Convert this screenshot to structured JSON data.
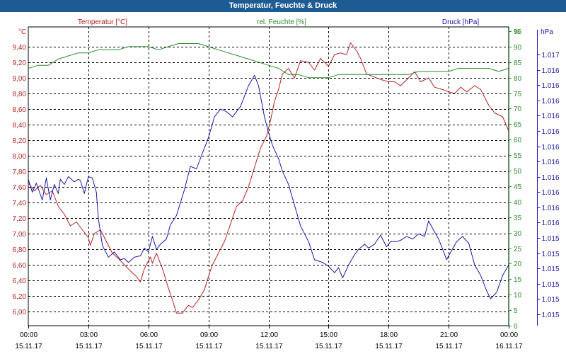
{
  "window": {
    "title": "Temperatur, Feuchte & Druck"
  },
  "colors": {
    "temperature": "#b22222",
    "humidity": "#2e8b2e",
    "pressure": "#1a1aa6",
    "titlebar": "#1f5b93"
  },
  "chart_data": {
    "type": "line",
    "title": "Temperatur, Feuchte & Druck",
    "grid": true,
    "x": {
      "range": [
        0,
        24
      ],
      "tick_hours": [
        0,
        3,
        6,
        9,
        12,
        15,
        18,
        21,
        24
      ],
      "tick_times": [
        "00:00",
        "03:00",
        "06:00",
        "09:00",
        "12:00",
        "15:00",
        "18:00",
        "21:00",
        "00:00"
      ],
      "tick_dates": [
        "15.11.17",
        "15.11.17",
        "15.11.17",
        "15.11.17",
        "15.11.17",
        "15.11.17",
        "15.11.17",
        "15.11.17",
        "16.11.17"
      ]
    },
    "axes": {
      "temperature": {
        "label": "Temperatur [°C]",
        "unit": "°C",
        "range": [
          5.8,
          9.6
        ],
        "ticks": [
          "6,00",
          "6,20",
          "6,40",
          "6,60",
          "6,80",
          "7,00",
          "7,20",
          "7,40",
          "7,60",
          "7,80",
          "8,00",
          "8,20",
          "8,40",
          "8,60",
          "8,80",
          "9,00",
          "9,20",
          "9,40"
        ]
      },
      "humidity": {
        "label": "rel. Feuchte [%]",
        "unit": "%",
        "range": [
          0,
          95
        ],
        "ticks": [
          "0",
          "5",
          "10",
          "15",
          "20",
          "25",
          "30",
          "35",
          "40",
          "45",
          "50",
          "55",
          "60",
          "65",
          "70",
          "75",
          "80",
          "85",
          "90",
          "95"
        ]
      },
      "pressure": {
        "label": "Druck [hPa]",
        "unit": "hPa",
        "range": [
          0,
          1
        ],
        "ticks": [
          "1.015",
          "1.015",
          "1.015",
          "1.015",
          "1.015",
          "1.015",
          "1.016",
          "1.016",
          "1.016",
          "1.016",
          "1.016",
          "1.016",
          "1.016",
          "1.016",
          "1.016",
          "1.016",
          "1.016",
          "1.017"
        ],
        "tick_fractions": [
          0.0,
          0.0588,
          0.1176,
          0.1765,
          0.2353,
          0.2941,
          0.3529,
          0.4118,
          0.4706,
          0.5294,
          0.5882,
          0.6471,
          0.7059,
          0.7647,
          0.8235,
          0.8824,
          0.9412,
          1.0
        ]
      }
    },
    "series": [
      {
        "name": "Temperatur [°C]",
        "axis": "temperature",
        "points": [
          [
            0,
            7.65
          ],
          [
            0.3,
            7.55
          ],
          [
            0.6,
            7.62
          ],
          [
            0.9,
            7.5
          ],
          [
            1.2,
            7.55
          ],
          [
            1.5,
            7.35
          ],
          [
            1.8,
            7.25
          ],
          [
            2.1,
            7.1
          ],
          [
            2.4,
            7.15
          ],
          [
            2.7,
            7.05
          ],
          [
            3.0,
            6.95
          ],
          [
            3.1,
            6.85
          ],
          [
            3.3,
            7.0
          ],
          [
            3.6,
            7.05
          ],
          [
            3.9,
            6.9
          ],
          [
            4.2,
            6.75
          ],
          [
            4.5,
            6.68
          ],
          [
            4.8,
            6.6
          ],
          [
            5.1,
            6.52
          ],
          [
            5.4,
            6.45
          ],
          [
            5.6,
            6.38
          ],
          [
            5.8,
            6.55
          ],
          [
            6.1,
            6.7
          ],
          [
            6.2,
            6.62
          ],
          [
            6.4,
            6.75
          ],
          [
            6.7,
            6.55
          ],
          [
            7.0,
            6.3
          ],
          [
            7.2,
            6.15
          ],
          [
            7.4,
            5.98
          ],
          [
            7.7,
            5.98
          ],
          [
            8.0,
            6.08
          ],
          [
            8.2,
            6.05
          ],
          [
            8.5,
            6.15
          ],
          [
            8.8,
            6.28
          ],
          [
            9.0,
            6.45
          ],
          [
            9.2,
            6.6
          ],
          [
            9.5,
            6.75
          ],
          [
            9.8,
            6.9
          ],
          [
            10.1,
            7.12
          ],
          [
            10.4,
            7.35
          ],
          [
            10.7,
            7.42
          ],
          [
            11.0,
            7.6
          ],
          [
            11.3,
            7.85
          ],
          [
            11.6,
            8.1
          ],
          [
            11.9,
            8.25
          ],
          [
            12.1,
            8.45
          ],
          [
            12.3,
            8.7
          ],
          [
            12.5,
            8.85
          ],
          [
            12.7,
            9.05
          ],
          [
            13.0,
            9.12
          ],
          [
            13.3,
            9.0
          ],
          [
            13.6,
            9.22
          ],
          [
            14.0,
            9.2
          ],
          [
            14.3,
            9.1
          ],
          [
            14.6,
            9.25
          ],
          [
            15.0,
            9.15
          ],
          [
            15.3,
            9.3
          ],
          [
            15.6,
            9.32
          ],
          [
            15.9,
            9.3
          ],
          [
            16.1,
            9.45
          ],
          [
            16.4,
            9.35
          ],
          [
            16.6,
            9.25
          ],
          [
            16.9,
            9.05
          ],
          [
            17.2,
            9.02
          ],
          [
            17.6,
            8.98
          ],
          [
            18.0,
            8.95
          ],
          [
            18.3,
            8.95
          ],
          [
            18.6,
            8.9
          ],
          [
            19.0,
            9.0
          ],
          [
            19.3,
            9.08
          ],
          [
            19.6,
            8.95
          ],
          [
            20.0,
            9.0
          ],
          [
            20.3,
            8.88
          ],
          [
            20.7,
            8.85
          ],
          [
            21.0,
            8.82
          ],
          [
            21.3,
            8.8
          ],
          [
            21.6,
            8.88
          ],
          [
            21.9,
            8.82
          ],
          [
            22.3,
            8.9
          ],
          [
            22.6,
            8.85
          ],
          [
            23.0,
            8.65
          ],
          [
            23.3,
            8.55
          ],
          [
            23.7,
            8.5
          ],
          [
            24.0,
            8.32
          ]
        ]
      },
      {
        "name": "rel. Feuchte [%]",
        "axis": "humidity",
        "points": [
          [
            0,
            83
          ],
          [
            0.5,
            84
          ],
          [
            1.0,
            84
          ],
          [
            1.5,
            86
          ],
          [
            2.0,
            87
          ],
          [
            2.5,
            88
          ],
          [
            3.0,
            88
          ],
          [
            3.5,
            89
          ],
          [
            4.0,
            89
          ],
          [
            4.5,
            89
          ],
          [
            5.0,
            90
          ],
          [
            5.5,
            90
          ],
          [
            6.0,
            90
          ],
          [
            6.5,
            89
          ],
          [
            7.0,
            90
          ],
          [
            7.5,
            91
          ],
          [
            8.0,
            91
          ],
          [
            8.5,
            91
          ],
          [
            9.0,
            90
          ],
          [
            9.5,
            89
          ],
          [
            10.0,
            88
          ],
          [
            10.5,
            87
          ],
          [
            11.0,
            86
          ],
          [
            11.5,
            85
          ],
          [
            12.0,
            84
          ],
          [
            12.5,
            83
          ],
          [
            13.0,
            81
          ],
          [
            13.5,
            81
          ],
          [
            14.0,
            80
          ],
          [
            14.5,
            80
          ],
          [
            15.0,
            80
          ],
          [
            15.5,
            81
          ],
          [
            16.0,
            81
          ],
          [
            16.5,
            81
          ],
          [
            17.0,
            81
          ],
          [
            17.5,
            81
          ],
          [
            18.0,
            81
          ],
          [
            18.5,
            81
          ],
          [
            19.0,
            81
          ],
          [
            19.5,
            82
          ],
          [
            20.0,
            82
          ],
          [
            20.5,
            82
          ],
          [
            21.0,
            82
          ],
          [
            21.5,
            83
          ],
          [
            22.0,
            83
          ],
          [
            22.5,
            83
          ],
          [
            23.0,
            83
          ],
          [
            23.5,
            82
          ],
          [
            24.0,
            83
          ]
        ]
      },
      {
        "name": "Druck [hPa]",
        "axis": "pressure",
        "points": [
          [
            0,
            0.52
          ],
          [
            0.2,
            0.47
          ],
          [
            0.4,
            0.505
          ],
          [
            0.7,
            0.44
          ],
          [
            0.9,
            0.525
          ],
          [
            1.1,
            0.44
          ],
          [
            1.3,
            0.5
          ],
          [
            1.5,
            0.465
          ],
          [
            1.6,
            0.52
          ],
          [
            1.8,
            0.5
          ],
          [
            2.0,
            0.53
          ],
          [
            2.3,
            0.51
          ],
          [
            2.5,
            0.52
          ],
          [
            2.6,
            0.515
          ],
          [
            2.8,
            0.465
          ],
          [
            3.0,
            0.53
          ],
          [
            3.2,
            0.525
          ],
          [
            3.4,
            0.47
          ],
          [
            3.5,
            0.37
          ],
          [
            3.7,
            0.265
          ],
          [
            4.0,
            0.22
          ],
          [
            4.3,
            0.24
          ],
          [
            4.6,
            0.21
          ],
          [
            4.8,
            0.215
          ],
          [
            5.0,
            0.2
          ],
          [
            5.3,
            0.22
          ],
          [
            5.6,
            0.225
          ],
          [
            5.8,
            0.255
          ],
          [
            6.0,
            0.24
          ],
          [
            6.2,
            0.3
          ],
          [
            6.4,
            0.25
          ],
          [
            6.6,
            0.27
          ],
          [
            6.9,
            0.29
          ],
          [
            7.1,
            0.345
          ],
          [
            7.4,
            0.38
          ],
          [
            7.8,
            0.48
          ],
          [
            8.1,
            0.57
          ],
          [
            8.4,
            0.56
          ],
          [
            8.7,
            0.62
          ],
          [
            9.0,
            0.68
          ],
          [
            9.3,
            0.76
          ],
          [
            9.6,
            0.79
          ],
          [
            9.9,
            0.78
          ],
          [
            10.2,
            0.76
          ],
          [
            10.6,
            0.8
          ],
          [
            11.0,
            0.88
          ],
          [
            11.3,
            0.92
          ],
          [
            11.5,
            0.88
          ],
          [
            11.8,
            0.76
          ],
          [
            12.0,
            0.7
          ],
          [
            12.2,
            0.65
          ],
          [
            12.5,
            0.6
          ],
          [
            12.7,
            0.55
          ],
          [
            13.0,
            0.5
          ],
          [
            13.3,
            0.42
          ],
          [
            13.6,
            0.34
          ],
          [
            14.0,
            0.28
          ],
          [
            14.3,
            0.21
          ],
          [
            14.7,
            0.2
          ],
          [
            15.0,
            0.185
          ],
          [
            15.3,
            0.16
          ],
          [
            15.5,
            0.18
          ],
          [
            15.7,
            0.14
          ],
          [
            16.0,
            0.19
          ],
          [
            16.3,
            0.23
          ],
          [
            16.5,
            0.25
          ],
          [
            16.8,
            0.27
          ],
          [
            17.0,
            0.255
          ],
          [
            17.3,
            0.27
          ],
          [
            17.6,
            0.305
          ],
          [
            17.9,
            0.26
          ],
          [
            18.1,
            0.28
          ],
          [
            18.4,
            0.28
          ],
          [
            18.6,
            0.285
          ],
          [
            18.9,
            0.3
          ],
          [
            19.2,
            0.29
          ],
          [
            19.5,
            0.31
          ],
          [
            19.8,
            0.3
          ],
          [
            20.0,
            0.36
          ],
          [
            20.2,
            0.33
          ],
          [
            20.5,
            0.29
          ],
          [
            20.9,
            0.21
          ],
          [
            21.0,
            0.225
          ],
          [
            21.4,
            0.28
          ],
          [
            21.7,
            0.3
          ],
          [
            21.8,
            0.29
          ],
          [
            22.0,
            0.275
          ],
          [
            22.3,
            0.19
          ],
          [
            22.6,
            0.15
          ],
          [
            22.9,
            0.09
          ],
          [
            23.1,
            0.06
          ],
          [
            23.4,
            0.085
          ],
          [
            23.7,
            0.15
          ],
          [
            24.0,
            0.19
          ]
        ]
      }
    ]
  }
}
